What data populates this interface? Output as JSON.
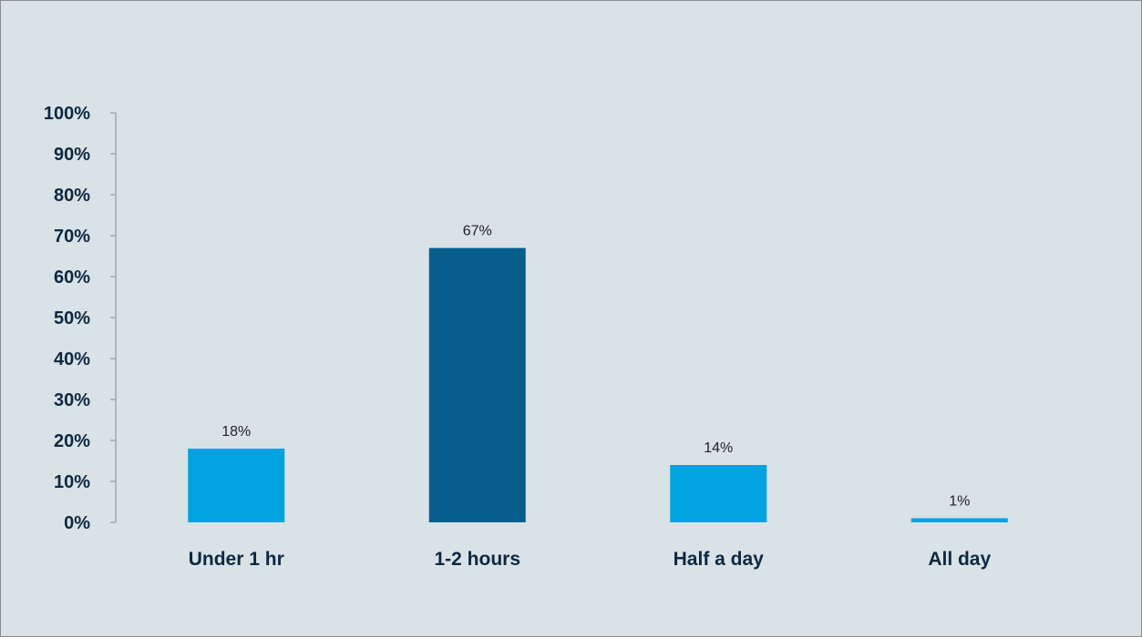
{
  "chart_data": {
    "type": "bar",
    "title": "",
    "xlabel": "",
    "ylabel": "",
    "categories": [
      "Under 1 hr",
      "1-2 hours",
      "Half a day",
      "All day"
    ],
    "values": [
      18,
      67,
      14,
      1
    ],
    "value_labels": [
      "18%",
      "67%",
      "14%",
      "1%"
    ],
    "bar_colors": [
      "#00a3e0",
      "#065e8c",
      "#00a3e0",
      "#00a3e0"
    ],
    "ylim": [
      0,
      100
    ],
    "yticks": [
      0,
      10,
      20,
      30,
      40,
      50,
      60,
      70,
      80,
      90,
      100
    ],
    "ytick_labels": [
      "0%",
      "10%",
      "20%",
      "30%",
      "40%",
      "50%",
      "60%",
      "70%",
      "80%",
      "90%",
      "100%"
    ],
    "grid": false,
    "legend": "none"
  }
}
